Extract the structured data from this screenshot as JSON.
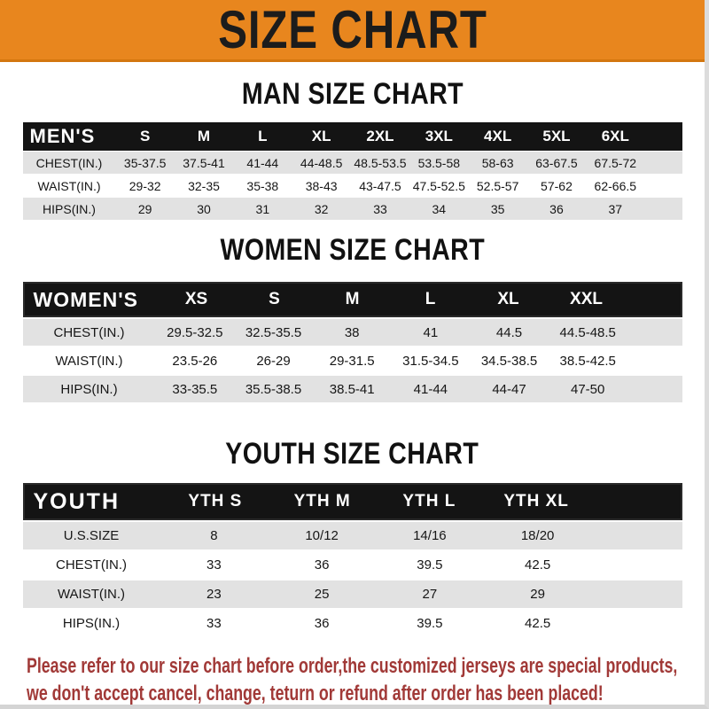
{
  "banner": {
    "title": "SIZE CHART"
  },
  "sections": [
    {
      "heading": "MAN SIZE CHART",
      "table": {
        "corner": "MEN'S",
        "columns": [
          "S",
          "M",
          "L",
          "XL",
          "2XL",
          "3XL",
          "4XL",
          "5XL",
          "6XL"
        ],
        "rows": [
          {
            "label": "CHEST(IN.)",
            "values": [
              "35-37.5",
              "37.5-41",
              "41-44",
              "44-48.5",
              "48.5-53.5",
              "53.5-58",
              "58-63",
              "63-67.5",
              "67.5-72"
            ]
          },
          {
            "label": "WAIST(IN.)",
            "values": [
              "29-32",
              "32-35",
              "35-38",
              "38-43",
              "43-47.5",
              "47.5-52.5",
              "52.5-57",
              "57-62",
              "62-66.5"
            ]
          },
          {
            "label": "HIPS(IN.)",
            "values": [
              "29",
              "30",
              "31",
              "32",
              "33",
              "34",
              "35",
              "36",
              "37"
            ]
          }
        ]
      }
    },
    {
      "heading": "WOMEN SIZE CHART",
      "table": {
        "corner": "WOMEN'S",
        "columns": [
          "XS",
          "S",
          "M",
          "L",
          "XL",
          "XXL"
        ],
        "rows": [
          {
            "label": "CHEST(IN.)",
            "values": [
              "29.5-32.5",
              "32.5-35.5",
              "38",
              "41",
              "44.5",
              "44.5-48.5"
            ]
          },
          {
            "label": "WAIST(IN.)",
            "values": [
              "23.5-26",
              "26-29",
              "29-31.5",
              "31.5-34.5",
              "34.5-38.5",
              "38.5-42.5"
            ]
          },
          {
            "label": "HIPS(IN.)",
            "values": [
              "33-35.5",
              "35.5-38.5",
              "38.5-41",
              "41-44",
              "44-47",
              "47-50"
            ]
          }
        ]
      }
    },
    {
      "heading": "YOUTH SIZE CHART",
      "table": {
        "corner": "YOUTH",
        "columns": [
          "YTH S",
          "YTH M",
          "YTH L",
          "YTH XL"
        ],
        "rows": [
          {
            "label": "U.S.SIZE",
            "values": [
              "8",
              "10/12",
              "14/16",
              "18/20"
            ]
          },
          {
            "label": "CHEST(IN.)",
            "values": [
              "33",
              "36",
              "39.5",
              "42.5"
            ]
          },
          {
            "label": "WAIST(IN.)",
            "values": [
              "23",
              "25",
              "27",
              "29"
            ]
          },
          {
            "label": "HIPS(IN.)",
            "values": [
              "33",
              "36",
              "39.5",
              "42.5"
            ]
          }
        ]
      }
    }
  ],
  "footer": {
    "line1": "Please refer to our size chart before order,the customized jerseys are special products,",
    "line2": "we don't accept cancel, change, teturn or refund after order has been placed!"
  },
  "colors": {
    "banner_bg": "#e8861e",
    "banner_edge": "#d3770f",
    "header_bar_bg": "#141414",
    "row_shade_bg": "#e2e2e2",
    "footer_text": "#a13937"
  }
}
